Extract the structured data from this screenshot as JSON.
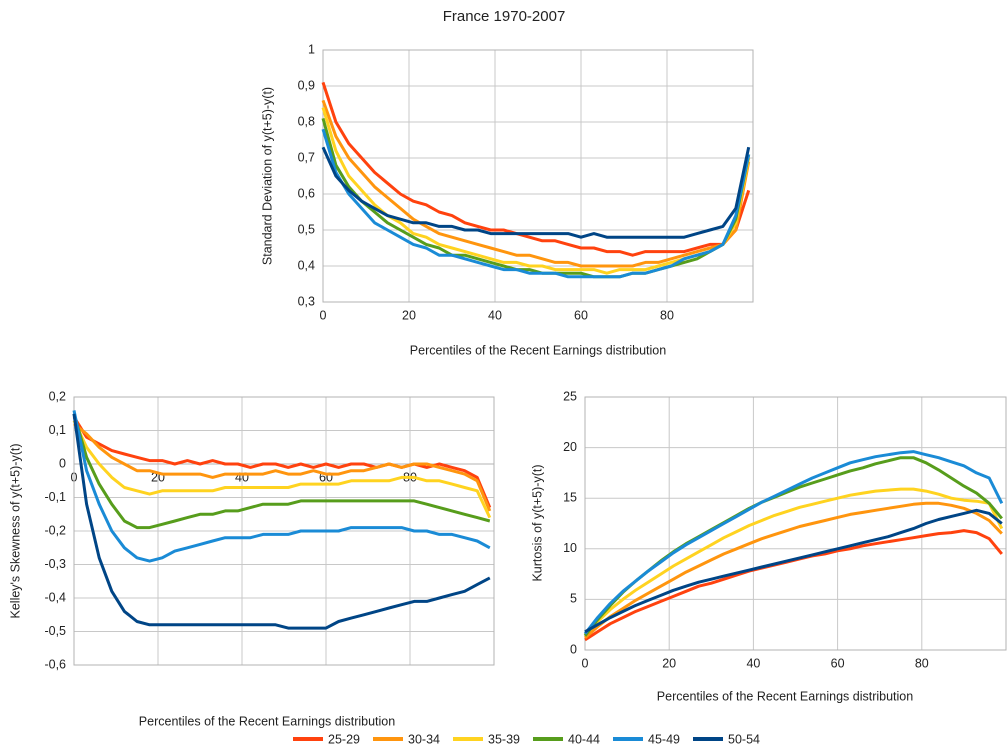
{
  "chart_data": [
    {
      "type": "line",
      "title": "France 1970-2007",
      "x_label": "Percentiles of the Recent Earnings distribution",
      "y_label": "Standard Deviation of y(t+5)-y(t)",
      "x": [
        0,
        3,
        6,
        9,
        12,
        15,
        18,
        21,
        24,
        27,
        30,
        33,
        36,
        39,
        42,
        45,
        48,
        51,
        54,
        57,
        60,
        63,
        66,
        69,
        72,
        75,
        78,
        81,
        84,
        87,
        90,
        93,
        96,
        99
      ],
      "xlim": [
        0,
        100
      ],
      "xticks": [
        0,
        20,
        40,
        60,
        80
      ],
      "ylim": [
        0.3,
        1
      ],
      "yticks": [
        {
          "value": 0.3,
          "label": "0,3"
        },
        {
          "value": 0.4,
          "label": "0,4"
        },
        {
          "value": 0.5,
          "label": "0,5"
        },
        {
          "value": 0.6,
          "label": "0,6"
        },
        {
          "value": 0.7,
          "label": "0,7"
        },
        {
          "value": 0.8,
          "label": "0,8"
        },
        {
          "value": 0.9,
          "label": "0,9"
        },
        1
      ],
      "grid": true,
      "series": [
        {
          "name": "25-29",
          "color": "#ff420e",
          "values": [
            0.91,
            0.8,
            0.74,
            0.7,
            0.66,
            0.63,
            0.6,
            0.58,
            0.57,
            0.55,
            0.54,
            0.52,
            0.51,
            0.5,
            0.5,
            0.49,
            0.48,
            0.47,
            0.47,
            0.46,
            0.45,
            0.45,
            0.44,
            0.44,
            0.43,
            0.44,
            0.44,
            0.44,
            0.44,
            0.45,
            0.46,
            0.46,
            0.5,
            0.61
          ]
        },
        {
          "name": "30-34",
          "color": "#ff950e",
          "values": [
            0.86,
            0.76,
            0.7,
            0.66,
            0.62,
            0.59,
            0.56,
            0.53,
            0.51,
            0.49,
            0.48,
            0.47,
            0.46,
            0.45,
            0.44,
            0.43,
            0.43,
            0.42,
            0.41,
            0.41,
            0.4,
            0.4,
            0.4,
            0.4,
            0.4,
            0.41,
            0.41,
            0.42,
            0.43,
            0.44,
            0.45,
            0.46,
            0.5,
            0.69
          ]
        },
        {
          "name": "35-39",
          "color": "#ffd320",
          "values": [
            0.84,
            0.72,
            0.65,
            0.61,
            0.57,
            0.54,
            0.52,
            0.49,
            0.48,
            0.46,
            0.45,
            0.44,
            0.43,
            0.42,
            0.41,
            0.41,
            0.4,
            0.4,
            0.39,
            0.39,
            0.39,
            0.39,
            0.38,
            0.39,
            0.39,
            0.39,
            0.4,
            0.41,
            0.42,
            0.43,
            0.44,
            0.46,
            0.52,
            0.7
          ]
        },
        {
          "name": "40-44",
          "color": "#579d1c",
          "values": [
            0.81,
            0.68,
            0.62,
            0.58,
            0.55,
            0.52,
            0.5,
            0.48,
            0.46,
            0.45,
            0.43,
            0.43,
            0.42,
            0.41,
            0.4,
            0.39,
            0.39,
            0.38,
            0.38,
            0.38,
            0.38,
            0.37,
            0.37,
            0.37,
            0.38,
            0.38,
            0.39,
            0.4,
            0.41,
            0.42,
            0.44,
            0.46,
            0.53,
            0.71
          ]
        },
        {
          "name": "45-49",
          "color": "#1a8bd6",
          "values": [
            0.78,
            0.66,
            0.6,
            0.56,
            0.52,
            0.5,
            0.48,
            0.46,
            0.45,
            0.43,
            0.43,
            0.42,
            0.41,
            0.4,
            0.39,
            0.39,
            0.38,
            0.38,
            0.38,
            0.37,
            0.37,
            0.37,
            0.37,
            0.37,
            0.38,
            0.38,
            0.39,
            0.4,
            0.42,
            0.43,
            0.44,
            0.46,
            0.54,
            0.71
          ]
        },
        {
          "name": "50-54",
          "color": "#004586",
          "values": [
            0.73,
            0.65,
            0.61,
            0.58,
            0.56,
            0.54,
            0.53,
            0.52,
            0.52,
            0.51,
            0.51,
            0.5,
            0.5,
            0.49,
            0.49,
            0.49,
            0.49,
            0.49,
            0.49,
            0.49,
            0.48,
            0.49,
            0.48,
            0.48,
            0.48,
            0.48,
            0.48,
            0.48,
            0.48,
            0.49,
            0.5,
            0.51,
            0.56,
            0.73
          ]
        }
      ]
    },
    {
      "type": "line",
      "x_label": "Percentiles of the Recent Earnings distribution",
      "y_label": "Kelley's Skewness of y(t+5)-y(t)",
      "x": [
        0,
        3,
        6,
        9,
        12,
        15,
        18,
        21,
        24,
        27,
        30,
        33,
        36,
        39,
        42,
        45,
        48,
        51,
        54,
        57,
        60,
        63,
        66,
        69,
        72,
        75,
        78,
        81,
        84,
        87,
        90,
        93,
        96,
        99
      ],
      "xlim": [
        0,
        100
      ],
      "xticks": [
        0,
        20,
        40,
        60,
        80
      ],
      "ylim": [
        -0.6,
        0.2
      ],
      "yticks": [
        {
          "value": -0.6,
          "label": "-0,6"
        },
        {
          "value": -0.5,
          "label": "-0,5"
        },
        {
          "value": -0.4,
          "label": "-0,4"
        },
        {
          "value": -0.3,
          "label": "-0,3"
        },
        {
          "value": -0.2,
          "label": "-0,2"
        },
        {
          "value": -0.1,
          "label": "-0,1"
        },
        0,
        {
          "value": 0.1,
          "label": "0,1"
        },
        {
          "value": 0.2,
          "label": "0,2"
        }
      ],
      "grid": true,
      "series": [
        {
          "values": [
            0.14,
            0.08,
            0.06,
            0.04,
            0.03,
            0.02,
            0.01,
            0.01,
            0,
            0.01,
            0,
            0.01,
            0,
            0,
            -0.01,
            0,
            0,
            -0.01,
            0,
            -0.01,
            0,
            -0.01,
            0,
            0,
            -0.01,
            0,
            -0.01,
            0,
            -0.01,
            0,
            -0.01,
            -0.02,
            -0.04,
            -0.13
          ]
        },
        {
          "values": [
            0.12,
            0.09,
            0.05,
            0.02,
            0,
            -0.02,
            -0.02,
            -0.03,
            -0.03,
            -0.03,
            -0.03,
            -0.04,
            -0.03,
            -0.03,
            -0.03,
            -0.03,
            -0.02,
            -0.03,
            -0.03,
            -0.02,
            -0.03,
            -0.03,
            -0.02,
            -0.02,
            -0.01,
            0,
            -0.01,
            0,
            0,
            -0.01,
            -0.02,
            -0.03,
            -0.05,
            -0.14
          ]
        },
        {
          "values": [
            0.13,
            0.05,
            0,
            -0.04,
            -0.07,
            -0.08,
            -0.09,
            -0.08,
            -0.08,
            -0.08,
            -0.08,
            -0.08,
            -0.07,
            -0.07,
            -0.07,
            -0.07,
            -0.07,
            -0.07,
            -0.06,
            -0.06,
            -0.06,
            -0.06,
            -0.05,
            -0.05,
            -0.05,
            -0.05,
            -0.04,
            -0.04,
            -0.05,
            -0.05,
            -0.06,
            -0.07,
            -0.08,
            -0.16
          ]
        },
        {
          "values": [
            0.15,
            0.02,
            -0.06,
            -0.12,
            -0.17,
            -0.19,
            -0.19,
            -0.18,
            -0.17,
            -0.16,
            -0.15,
            -0.15,
            -0.14,
            -0.14,
            -0.13,
            -0.12,
            -0.12,
            -0.12,
            -0.11,
            -0.11,
            -0.11,
            -0.11,
            -0.11,
            -0.11,
            -0.11,
            -0.11,
            -0.11,
            -0.11,
            -0.12,
            -0.13,
            -0.14,
            -0.15,
            -0.16,
            -0.17
          ]
        },
        {
          "values": [
            0.16,
            -0.02,
            -0.12,
            -0.2,
            -0.25,
            -0.28,
            -0.29,
            -0.28,
            -0.26,
            -0.25,
            -0.24,
            -0.23,
            -0.22,
            -0.22,
            -0.22,
            -0.21,
            -0.21,
            -0.21,
            -0.2,
            -0.2,
            -0.2,
            -0.2,
            -0.19,
            -0.19,
            -0.19,
            -0.19,
            -0.19,
            -0.2,
            -0.2,
            -0.21,
            -0.21,
            -0.22,
            -0.23,
            -0.25
          ]
        },
        {
          "values": [
            0.15,
            -0.12,
            -0.28,
            -0.38,
            -0.44,
            -0.47,
            -0.48,
            -0.48,
            -0.48,
            -0.48,
            -0.48,
            -0.48,
            -0.48,
            -0.48,
            -0.48,
            -0.48,
            -0.48,
            -0.49,
            -0.49,
            -0.49,
            -0.49,
            -0.47,
            -0.46,
            -0.45,
            -0.44,
            -0.43,
            -0.42,
            -0.41,
            -0.41,
            -0.4,
            -0.39,
            -0.38,
            -0.36,
            -0.34
          ]
        }
      ]
    },
    {
      "type": "line",
      "x_label": "Percentiles of the Recent Earnings distribution",
      "y_label": "Kurtosis of y(t+5)-y(t)",
      "x": [
        0,
        3,
        6,
        9,
        12,
        15,
        18,
        21,
        24,
        27,
        30,
        33,
        36,
        39,
        42,
        45,
        48,
        51,
        54,
        57,
        60,
        63,
        66,
        69,
        72,
        75,
        78,
        81,
        84,
        87,
        90,
        93,
        96,
        99
      ],
      "xlim": [
        0,
        100
      ],
      "xticks": [
        0,
        20,
        40,
        60,
        80
      ],
      "ylim": [
        0,
        25
      ],
      "yticks": [
        0,
        5,
        10,
        15,
        20,
        25
      ],
      "grid": true,
      "series": [
        {
          "values": [
            1.0,
            1.8,
            2.6,
            3.2,
            3.8,
            4.3,
            4.8,
            5.3,
            5.8,
            6.3,
            6.6,
            7.0,
            7.4,
            7.8,
            8.1,
            8.4,
            8.7,
            9.0,
            9.3,
            9.5,
            9.8,
            10.0,
            10.3,
            10.5,
            10.7,
            10.9,
            11.1,
            11.3,
            11.5,
            11.6,
            11.8,
            11.6,
            11.0,
            9.5
          ]
        },
        {
          "values": [
            1.2,
            2.3,
            3.3,
            4.1,
            4.9,
            5.6,
            6.3,
            7.0,
            7.7,
            8.3,
            8.9,
            9.5,
            10.0,
            10.5,
            11.0,
            11.4,
            11.8,
            12.2,
            12.5,
            12.8,
            13.1,
            13.4,
            13.6,
            13.8,
            14.0,
            14.2,
            14.4,
            14.5,
            14.5,
            14.3,
            14.0,
            13.5,
            12.8,
            11.5
          ]
        },
        {
          "values": [
            1.5,
            2.8,
            4.0,
            5.0,
            5.9,
            6.7,
            7.5,
            8.3,
            9.0,
            9.7,
            10.4,
            11.1,
            11.7,
            12.3,
            12.8,
            13.3,
            13.7,
            14.1,
            14.4,
            14.7,
            15.0,
            15.3,
            15.5,
            15.7,
            15.8,
            15.9,
            15.9,
            15.7,
            15.4,
            15.0,
            14.8,
            14.7,
            14.5,
            12.0
          ]
        },
        {
          "values": [
            1.4,
            3.0,
            4.4,
            5.7,
            6.8,
            7.8,
            8.8,
            9.7,
            10.5,
            11.2,
            11.9,
            12.6,
            13.3,
            14.0,
            14.6,
            15.1,
            15.6,
            16.1,
            16.5,
            16.9,
            17.3,
            17.7,
            18.0,
            18.4,
            18.7,
            19.0,
            19.0,
            18.5,
            17.8,
            17.0,
            16.2,
            15.5,
            14.5,
            13.0
          ]
        },
        {
          "values": [
            1.6,
            3.2,
            4.6,
            5.8,
            6.8,
            7.8,
            8.7,
            9.6,
            10.4,
            11.1,
            11.8,
            12.5,
            13.2,
            13.9,
            14.6,
            15.2,
            15.8,
            16.4,
            17.0,
            17.5,
            18.0,
            18.5,
            18.8,
            19.1,
            19.3,
            19.5,
            19.6,
            19.3,
            19.0,
            18.6,
            18.2,
            17.5,
            17.0,
            14.5
          ]
        },
        {
          "values": [
            1.8,
            2.5,
            3.2,
            3.8,
            4.4,
            4.9,
            5.4,
            5.9,
            6.3,
            6.7,
            7.0,
            7.3,
            7.6,
            7.9,
            8.2,
            8.5,
            8.8,
            9.1,
            9.4,
            9.7,
            10.0,
            10.3,
            10.6,
            10.9,
            11.2,
            11.6,
            12.0,
            12.5,
            12.9,
            13.2,
            13.5,
            13.8,
            13.5,
            12.5
          ]
        }
      ]
    }
  ]
}
